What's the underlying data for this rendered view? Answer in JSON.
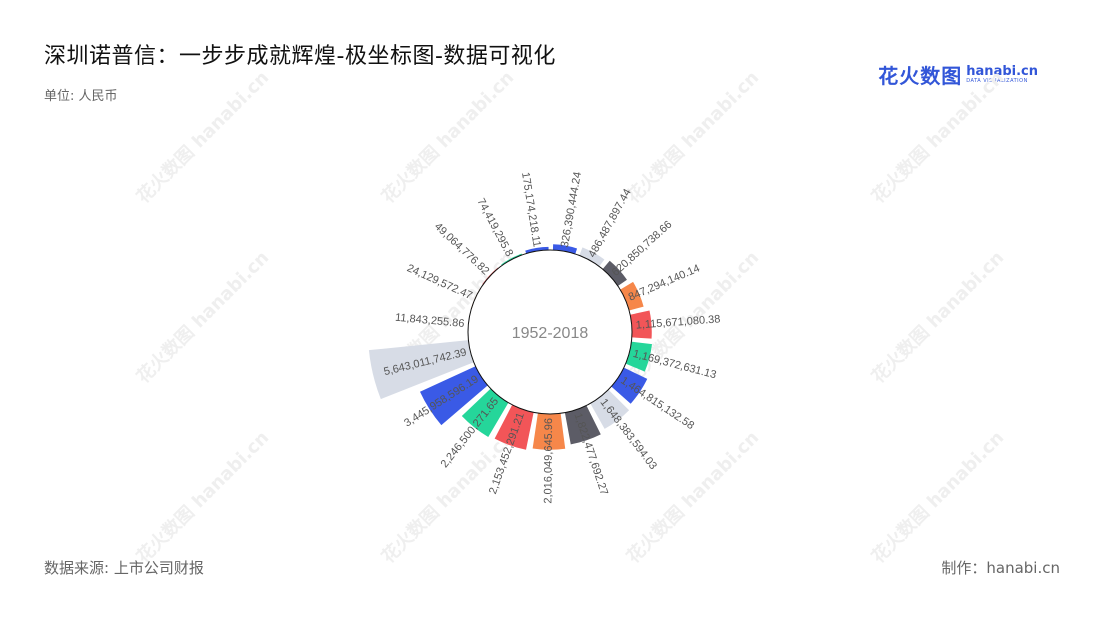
{
  "title": "深圳诺普信：一步步成就辉煌-极坐标图-数据可视化",
  "unit": "单位: 人民币",
  "logo": {
    "cn": "花火数图",
    "en": "hanabi.cn",
    "sub": "DATA VISUALIZATION"
  },
  "source": "数据来源: 上市公司财报",
  "credit": "制作：hanabi.cn",
  "watermark": "花火数图 hanabi.cn",
  "colors": [
    "#3a5ae6",
    "#d7dce6",
    "#5c5c66",
    "#f6874a",
    "#f25558",
    "#25d69a"
  ],
  "chart_data": {
    "type": "polar-bar",
    "center_label": "1952-2018",
    "values": [
      326390444.24,
      486487897.44,
      620850738.66,
      847294140.14,
      1115671080.38,
      1169372631.13,
      1464815132.58,
      1648383594.03,
      1822477692.27,
      2016049645.96,
      2153452291.21,
      2246500271.65,
      3445958596.19,
      5643011742.39,
      11843255.86,
      24129572.47,
      49064776.82,
      74419295.8,
      175174218.11
    ],
    "labels": [
      "326,390,444.24",
      "486,487,897.44",
      "620,850,738.66",
      "847,294,140.14",
      "1,115,671,080.38",
      "1,169,372,631.13",
      "1,464,815,132.58",
      "1,648,383,594.03",
      "1,822,477,692.27",
      "2,016,049,645.96",
      "2,153,452,291.21",
      "2,246,500,271.65",
      "3,445,958,596.19",
      "5,643,011,742.39",
      "11,843,255.86",
      "24,129,572.47",
      "49,064,776.82",
      "74,419,295.8",
      "175,174,218.11"
    ]
  }
}
